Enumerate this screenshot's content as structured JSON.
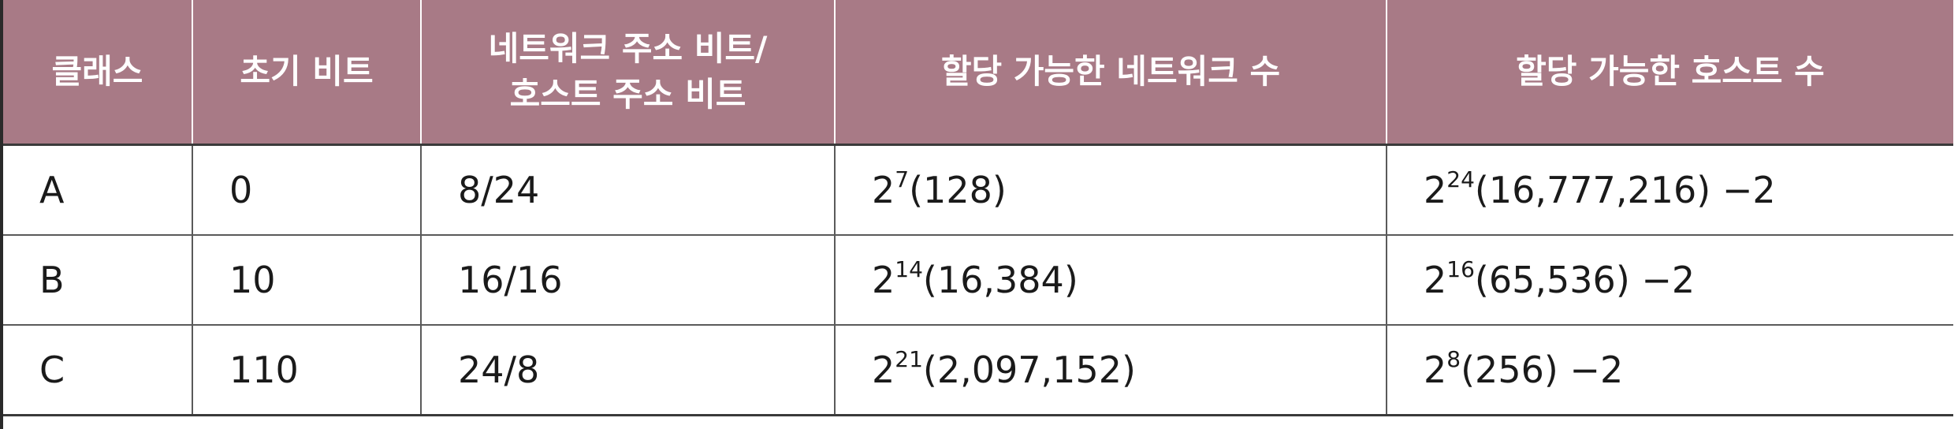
{
  "table": {
    "headers": [
      {
        "lines": [
          "클래스"
        ]
      },
      {
        "lines": [
          "초기 비트"
        ]
      },
      {
        "lines": [
          "네트워크 주소 비트/",
          "호스트 주소 비트"
        ]
      },
      {
        "lines": [
          "할당 가능한 네트워크 수"
        ]
      },
      {
        "lines": [
          "할당 가능한 호스트 수"
        ]
      }
    ],
    "rows": [
      {
        "class": "A",
        "initial_bits": "0",
        "net_host_bits": "8/24",
        "networks": {
          "base": "2",
          "exp": "7",
          "rest": "(128)"
        },
        "hosts": {
          "base": "2",
          "exp": "24",
          "rest": "(16,777,216) −2"
        }
      },
      {
        "class": "B",
        "initial_bits": "10",
        "net_host_bits": "16/16",
        "networks": {
          "base": "2",
          "exp": "14",
          "rest": "(16,384)"
        },
        "hosts": {
          "base": "2",
          "exp": "16",
          "rest": "(65,536) −2"
        }
      },
      {
        "class": "C",
        "initial_bits": "110",
        "net_host_bits": "24/8",
        "networks": {
          "base": "2",
          "exp": "21",
          "rest": "(2,097,152)"
        },
        "hosts": {
          "base": "2",
          "exp": "8",
          "rest": "(256) −2"
        }
      }
    ]
  },
  "colors": {
    "header_bg": "#a87a86",
    "header_text": "#ffffff",
    "cell_text": "#1a1a1a",
    "rule": "#5a5a5a"
  }
}
